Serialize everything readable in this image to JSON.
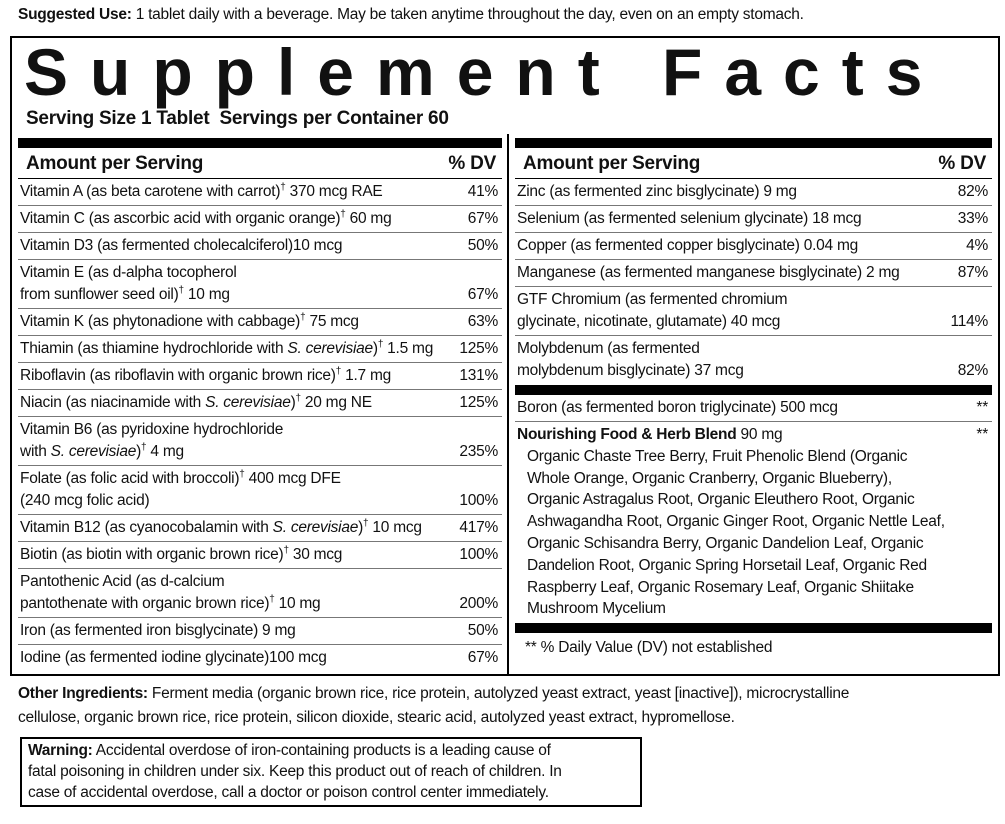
{
  "suggested_use": {
    "label": "Suggested Use:",
    "text": " 1 tablet daily with a beverage. May be taken anytime throughout the day, even on an empty stomach."
  },
  "facts": {
    "title": "Supplement Facts",
    "serving": "Serving Size 1 Tablet  Servings per Container 60",
    "left": {
      "header": {
        "amount": "Amount per Serving",
        "dv": "% DV"
      },
      "rows": [
        {
          "name": [
            "Vitamin A (as beta carotene with carrot)",
            {
              "sup": "†"
            },
            " 370 mcg RAE"
          ],
          "dv": "41%"
        },
        {
          "name": [
            "Vitamin C (as ascorbic acid with organic orange)",
            {
              "sup": "†"
            },
            " 60 mg"
          ],
          "dv": "67%"
        },
        {
          "name": [
            "Vitamin D3 (as fermented cholecalciferol)10 mcg"
          ],
          "dv": "50%"
        },
        {
          "name": [
            "Vitamin E (as d-alpha tocopherol\nfrom sunflower seed oil)",
            {
              "sup": "†"
            },
            " 10 mg"
          ],
          "dv": "67%"
        },
        {
          "name": [
            "Vitamin K (as phytonadione with cabbage)",
            {
              "sup": "†"
            },
            " 75 mcg"
          ],
          "dv": "63%"
        },
        {
          "name": [
            "Thiamin (as thiamine hydrochloride with ",
            {
              "italic": "S. cerevisiae"
            },
            ")",
            {
              "sup": "†"
            },
            " 1.5 mg"
          ],
          "dv": "125%"
        },
        {
          "name": [
            "Riboflavin (as riboflavin with organic brown rice)",
            {
              "sup": "†"
            },
            " 1.7 mg"
          ],
          "dv": "131%"
        },
        {
          "name": [
            "Niacin (as niacinamide with ",
            {
              "italic": "S. cerevisiae"
            },
            ")",
            {
              "sup": "†"
            },
            " 20 mg NE"
          ],
          "dv": "125%"
        },
        {
          "name": [
            "Vitamin B6 (as pyridoxine hydrochloride\nwith ",
            {
              "italic": "S. cerevisiae"
            },
            ")",
            {
              "sup": "†"
            },
            " 4 mg"
          ],
          "dv": "235%"
        },
        {
          "name": [
            "Folate (as folic acid with broccoli)",
            {
              "sup": "†"
            },
            " 400 mcg DFE\n(240 mcg folic acid)"
          ],
          "dv": "100%"
        },
        {
          "name": [
            "Vitamin B12 (as cyanocobalamin with ",
            {
              "italic": "S. cerevisiae"
            },
            ")",
            {
              "sup": "†"
            },
            " 10 mcg"
          ],
          "dv": "417%"
        },
        {
          "name": [
            "Biotin (as biotin with organic brown rice)",
            {
              "sup": "†"
            },
            " 30 mcg"
          ],
          "dv": "100%"
        },
        {
          "name": [
            "Pantothenic Acid (as d-calcium\npantothenate with organic brown rice)",
            {
              "sup": "†"
            },
            " 10 mg"
          ],
          "dv": "200%"
        },
        {
          "name": [
            "Iron (as fermented iron bisglycinate) 9 mg"
          ],
          "dv": "50%"
        },
        {
          "name": [
            "Iodine (as fermented iodine glycinate)100 mcg"
          ],
          "dv": "67%"
        }
      ]
    },
    "right": {
      "header": {
        "amount": "Amount per Serving",
        "dv": "% DV"
      },
      "rows": [
        {
          "name": [
            "Zinc (as fermented zinc bisglycinate) 9 mg"
          ],
          "dv": "82%"
        },
        {
          "name": [
            "Selenium (as fermented selenium glycinate) 18 mcg"
          ],
          "dv": "33%"
        },
        {
          "name": [
            "Copper (as fermented copper bisglycinate) 0.04 mg"
          ],
          "dv": "4%"
        },
        {
          "name": [
            "Manganese (as fermented manganese bisglycinate) 2 mg"
          ],
          "dv": "87%"
        },
        {
          "name": [
            "GTF Chromium (as fermented chromium\nglycinate, nicotinate, glutamate) 40 mcg"
          ],
          "dv": "114%"
        },
        {
          "name": [
            "Molybdenum (as fermented\nmolybdenum bisglycinate) 37 mcg"
          ],
          "dv": "82%"
        }
      ],
      "other_rows": [
        {
          "name": [
            "Boron (as fermented boron triglycinate) 500 mcg"
          ],
          "dv": "**"
        }
      ],
      "blend": {
        "name": "Nourishing Food & Herb Blend",
        "amount": " 90 mg",
        "dv": "**",
        "ingredients": "Organic Chaste Tree Berry, Fruit Phenolic Blend (Organic\nWhole Orange, Organic Cranberry, Organic Blueberry),\nOrganic Astragalus Root, Organic Eleuthero Root, Organic\nAshwagandha Root, Organic Ginger Root, Organic Nettle Leaf,\nOrganic Schisandra Berry, Organic Dandelion Leaf, Organic\nDandelion Root, Organic Spring Horsetail Leaf, Organic Red\nRaspberry Leaf, Organic Rosemary Leaf, Organic Shiitake\nMushroom Mycelium"
      },
      "footnote": "** % Daily Value (DV) not established"
    }
  },
  "other_ingredients": {
    "label": "Other Ingredients:",
    "text": " Ferment media (organic brown rice, rice protein, autolyzed yeast extract, yeast [inactive]), microcrystalline\ncellulose, organic brown rice, rice protein, silicon dioxide, stearic acid, autolyzed yeast extract, hypromellose."
  },
  "warning": {
    "label": "Warning:",
    "text": " Accidental overdose of iron-containing products is a leading cause of\nfatal poisoning in children under six. Keep this product out of reach of children. In\ncase of accidental overdose, call a doctor or poison control center immediately."
  }
}
